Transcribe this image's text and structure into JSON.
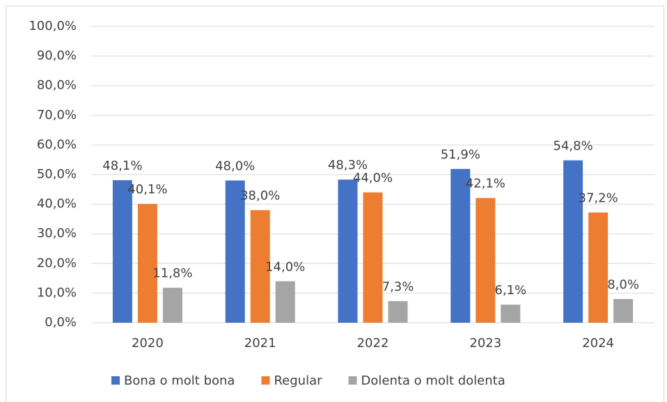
{
  "chart_data": {
    "type": "bar",
    "categories": [
      "2020",
      "2021",
      "2022",
      "2023",
      "2024"
    ],
    "series": [
      {
        "name": "Bona o molt bona",
        "color": "#4472c4",
        "values": [
          48.1,
          48.0,
          48.3,
          51.9,
          54.8
        ],
        "value_labels": [
          "48,1%",
          "48,0%",
          "48,3%",
          "51,9%",
          "54,8%"
        ]
      },
      {
        "name": "Regular",
        "color": "#ed7d31",
        "values": [
          40.1,
          38.0,
          44.0,
          42.1,
          37.2
        ],
        "value_labels": [
          "40,1%",
          "38,0%",
          "44,0%",
          "42,1%",
          "37,2%"
        ]
      },
      {
        "name": "Dolenta o molt dolenta",
        "color": "#a5a5a5",
        "values": [
          11.8,
          14.0,
          7.3,
          6.1,
          8.0
        ],
        "value_labels": [
          "11,8%",
          "14,0%",
          "7,3%",
          "6,1%",
          "8,0%"
        ]
      }
    ],
    "ylim": [
      0,
      100
    ],
    "yticks": [
      {
        "value": 0,
        "label": "0,0%"
      },
      {
        "value": 10,
        "label": "10,0%"
      },
      {
        "value": 20,
        "label": "20,0%"
      },
      {
        "value": 30,
        "label": "30,0%"
      },
      {
        "value": 40,
        "label": "40,0%"
      },
      {
        "value": 50,
        "label": "50,0%"
      },
      {
        "value": 60,
        "label": "60,0%"
      },
      {
        "value": 70,
        "label": "70,0%"
      },
      {
        "value": 80,
        "label": "80,0%"
      },
      {
        "value": 90,
        "label": "90,0%"
      },
      {
        "value": 100,
        "label": "100,0%"
      }
    ],
    "grid": true,
    "legend": "bottom"
  }
}
